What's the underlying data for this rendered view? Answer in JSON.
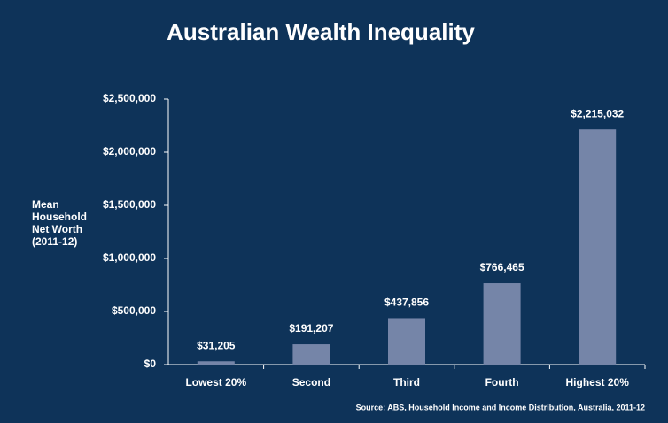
{
  "chart_data": {
    "type": "bar",
    "title": "Australian Wealth Inequality",
    "y_label": "Mean Household Net Worth (2011-12)",
    "source": "Source: ABS, Household Income and Income Distribution, Australia, 2011-12",
    "categories": [
      "Lowest 20%",
      "Second",
      "Third",
      "Fourth",
      "Highest 20%"
    ],
    "values": [
      31205,
      191207,
      437856,
      766465,
      2215032
    ],
    "value_labels": [
      "$31,205",
      "$191,207",
      "$437,856",
      "$766,465",
      "$2,215,032"
    ],
    "color": "#7585a8",
    "ylim": [
      0,
      2500000
    ],
    "yticks": [
      {
        "value": 0,
        "label": "$0"
      },
      {
        "value": 500000,
        "label": "$500,000"
      },
      {
        "value": 1000000,
        "label": "$1,000,000"
      },
      {
        "value": 1500000,
        "label": "$1,500,000"
      },
      {
        "value": 2000000,
        "label": "$2,000,000"
      },
      {
        "value": 2500000,
        "label": "$2,500,000"
      }
    ],
    "grid": false
  }
}
